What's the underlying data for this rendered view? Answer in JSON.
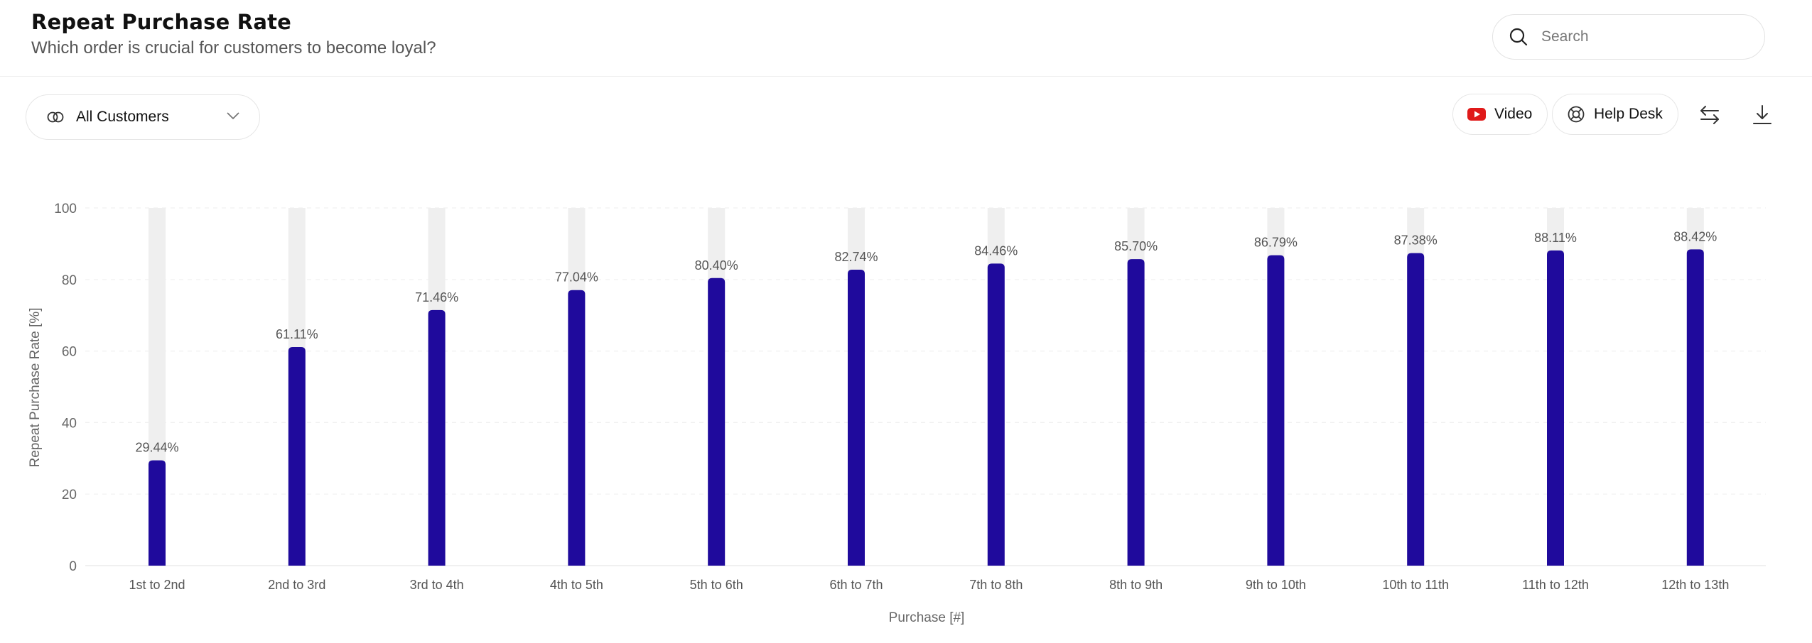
{
  "header": {
    "title": "Repeat Purchase Rate",
    "subtitle": "Which order is crucial for customers to become loyal?"
  },
  "search": {
    "placeholder": "Search",
    "icon": "search-icon"
  },
  "toolbar": {
    "segment_label": "All Customers",
    "video_label": "Video",
    "help_label": "Help Desk"
  },
  "colors": {
    "bar": "#1f0a9c",
    "bar_track": "#efefef",
    "video_icon": "#e01a1a"
  },
  "chart_data": {
    "type": "bar",
    "categories": [
      "1st to 2nd",
      "2nd to 3rd",
      "3rd to 4th",
      "4th to 5th",
      "5th to 6th",
      "6th to 7th",
      "7th to 8th",
      "8th to 9th",
      "9th to 10th",
      "10th to 11th",
      "11th to 12th",
      "12th to 13th"
    ],
    "values": [
      29.44,
      61.11,
      71.46,
      77.04,
      80.4,
      82.74,
      84.46,
      85.7,
      86.79,
      87.38,
      88.11,
      88.42
    ],
    "data_labels": [
      "29.44%",
      "61.11%",
      "71.46%",
      "77.04%",
      "80.40%",
      "82.74%",
      "84.46%",
      "85.70%",
      "86.79%",
      "87.38%",
      "88.11%",
      "88.42%"
    ],
    "xlabel": "Purchase [#]",
    "ylabel": "Repeat Purchase Rate [%]",
    "ylim": [
      0,
      100
    ],
    "yticks": [
      0,
      20,
      40,
      60,
      80,
      100
    ],
    "grid": true,
    "legend": "none"
  }
}
